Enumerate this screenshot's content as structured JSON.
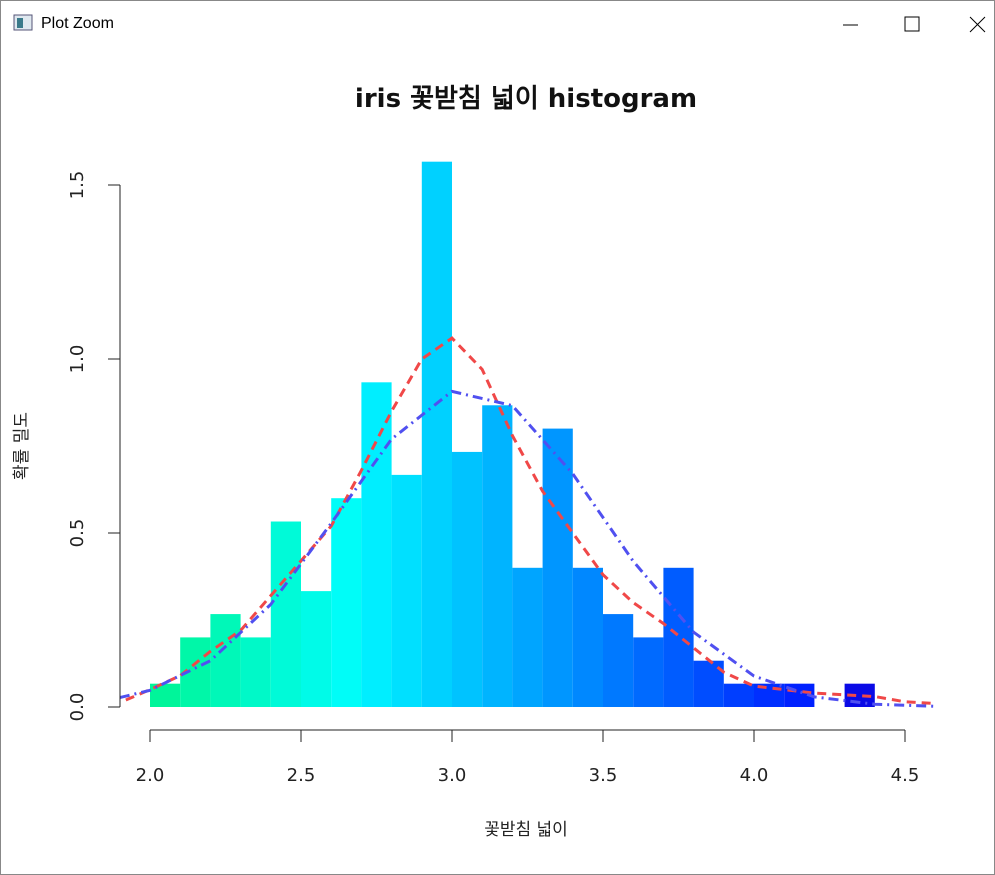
{
  "window": {
    "title": "Plot Zoom"
  },
  "chart_data": {
    "type": "histogram",
    "title": "iris 꽃받침 넓이 histogram",
    "xlabel": "꽃받침 넓이",
    "ylabel": "확률 밀도",
    "bins": [
      2.0,
      2.1,
      2.2,
      2.3,
      2.4,
      2.5,
      2.6,
      2.7,
      2.8,
      2.9,
      3.0,
      3.1,
      3.2,
      3.3,
      3.4,
      3.5,
      3.6,
      3.7,
      3.8,
      3.9,
      4.0,
      4.1,
      4.2,
      4.3,
      4.4
    ],
    "values": [
      0.067,
      0.2,
      0.267,
      0.2,
      0.533,
      0.333,
      0.6,
      0.933,
      0.667,
      1.567,
      0.733,
      0.867,
      0.4,
      0.8,
      0.4,
      0.267,
      0.2,
      0.4,
      0.133,
      0.067,
      0.067,
      0.067,
      0,
      0.067
    ],
    "colors": [
      "#00f59a",
      "#00f7a8",
      "#00f8b8",
      "#00f9c8",
      "#00fad8",
      "#00fbe8",
      "#00fdf8",
      "#00eeff",
      "#00e0ff",
      "#00d1ff",
      "#00c3ff",
      "#00b4ff",
      "#00a5ff",
      "#0096ff",
      "#0088ff",
      "#0079ff",
      "#006aff",
      "#005cff",
      "#004dff",
      "#003eff",
      "#002fff",
      "#0021ff",
      "#0012ff",
      "#0a0ae6"
    ],
    "series": [
      {
        "style": "dashed",
        "color": "#f04848",
        "x": [
          1.92,
          2.0,
          2.1,
          2.2,
          2.3,
          2.4,
          2.5,
          2.6,
          2.7,
          2.8,
          2.9,
          3.0,
          3.1,
          3.2,
          3.3,
          3.4,
          3.5,
          3.6,
          3.7,
          3.8,
          3.9,
          4.0,
          4.1,
          4.2,
          4.3,
          4.4,
          4.5,
          4.6
        ],
        "y": [
          0.02,
          0.05,
          0.09,
          0.16,
          0.22,
          0.32,
          0.42,
          0.52,
          0.68,
          0.85,
          1.0,
          1.06,
          0.97,
          0.78,
          0.62,
          0.5,
          0.38,
          0.3,
          0.24,
          0.17,
          0.1,
          0.06,
          0.05,
          0.04,
          0.035,
          0.03,
          0.015,
          0.01
        ]
      },
      {
        "style": "dotdash",
        "color": "#5050f0",
        "x": [
          1.9,
          2.0,
          2.2,
          2.4,
          2.6,
          2.8,
          3.0,
          3.2,
          3.4,
          3.6,
          3.8,
          4.0,
          4.2,
          4.4,
          4.6
        ],
        "y": [
          0.027,
          0.048,
          0.133,
          0.295,
          0.528,
          0.77,
          0.907,
          0.866,
          0.67,
          0.419,
          0.215,
          0.089,
          0.029,
          0.008,
          0.002
        ]
      }
    ],
    "xlim": [
      2.0,
      4.5
    ],
    "xticks": [
      {
        "value": 2,
        "label": "2.0"
      },
      {
        "value": 2.5,
        "label": "2.5"
      },
      {
        "value": 3,
        "label": "3.0"
      },
      {
        "value": 3.5,
        "label": "3.5"
      },
      {
        "value": 4,
        "label": "4.0"
      },
      {
        "value": 4.5,
        "label": "4.5"
      }
    ],
    "ylim": [
      0,
      1.5
    ],
    "yticks": [
      {
        "value": 0,
        "label": "0.0"
      },
      {
        "value": 0.5,
        "label": "0.5"
      },
      {
        "value": 1,
        "label": "1.0"
      },
      {
        "value": 1.5,
        "label": "1.5"
      }
    ]
  }
}
